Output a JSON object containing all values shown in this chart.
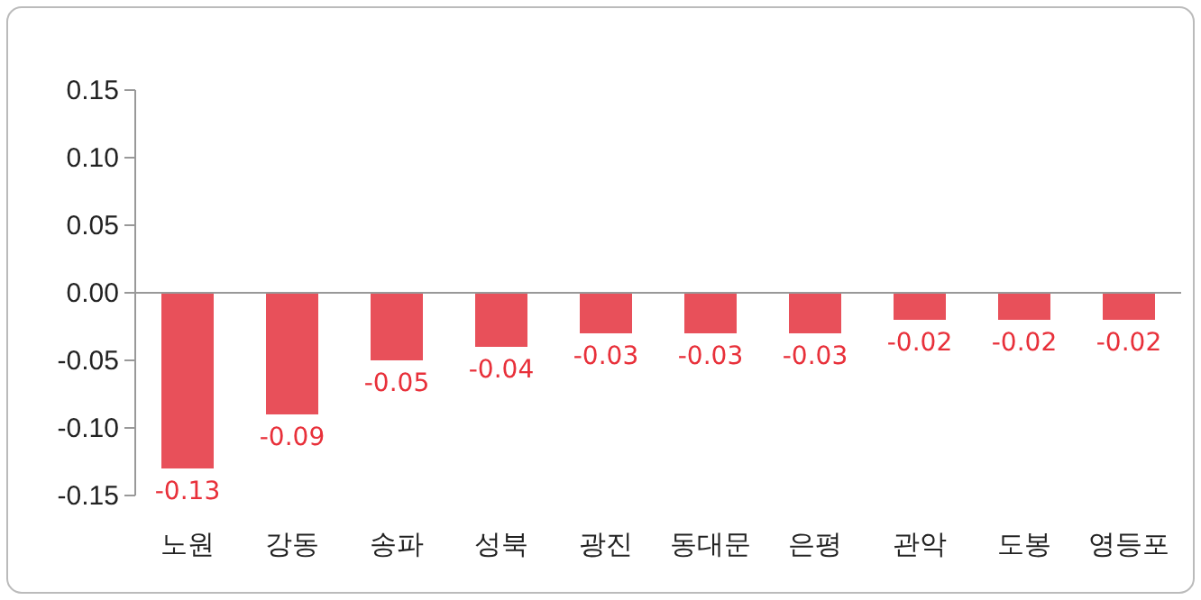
{
  "chart_data": {
    "type": "bar",
    "categories": [
      "노원",
      "강동",
      "송파",
      "성북",
      "광진",
      "동대문",
      "은평",
      "관악",
      "도봉",
      "영등포"
    ],
    "values": [
      -0.13,
      -0.09,
      -0.05,
      -0.04,
      -0.03,
      -0.03,
      -0.03,
      -0.02,
      -0.02,
      -0.02
    ],
    "color": "#e8505a",
    "ylim": [
      -0.15,
      0.15
    ],
    "yticks": [
      {
        "value": -0.15,
        "label": "-0.15"
      },
      {
        "value": -0.1,
        "label": "-0.10"
      },
      {
        "value": -0.05,
        "label": "-0.05"
      },
      {
        "value": 0,
        "label": "0.00"
      },
      {
        "value": 0.05,
        "label": "0.05"
      },
      {
        "value": 0.1,
        "label": "0.10"
      },
      {
        "value": 0.15,
        "label": "0.15"
      }
    ],
    "data_labels": true
  }
}
